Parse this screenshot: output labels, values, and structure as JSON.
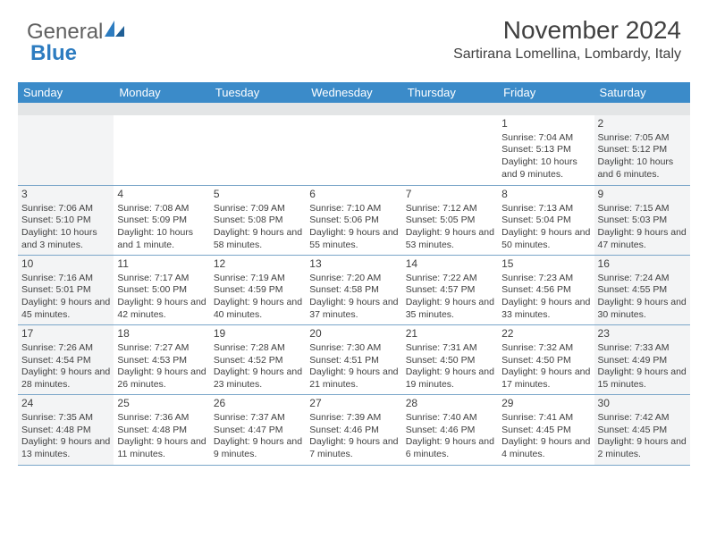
{
  "logo": {
    "text1": "General",
    "text2": "Blue",
    "shape_color": "#2d7cc0"
  },
  "title": "November 2024",
  "location": "Sartirana Lomellina, Lombardy, Italy",
  "header_bg": "#3b8bc9",
  "header_fg": "#ffffff",
  "shade_bg": "#f3f4f5",
  "rule_color": "#7aa6c9",
  "days": [
    "Sunday",
    "Monday",
    "Tuesday",
    "Wednesday",
    "Thursday",
    "Friday",
    "Saturday"
  ],
  "weeks": [
    [
      {
        "n": "",
        "shaded": true
      },
      {
        "n": ""
      },
      {
        "n": ""
      },
      {
        "n": ""
      },
      {
        "n": ""
      },
      {
        "n": "1",
        "sr": "Sunrise: 7:04 AM",
        "ss": "Sunset: 5:13 PM",
        "dl": "Daylight: 10 hours and 9 minutes."
      },
      {
        "n": "2",
        "shaded": true,
        "sr": "Sunrise: 7:05 AM",
        "ss": "Sunset: 5:12 PM",
        "dl": "Daylight: 10 hours and 6 minutes."
      }
    ],
    [
      {
        "n": "3",
        "shaded": true,
        "sr": "Sunrise: 7:06 AM",
        "ss": "Sunset: 5:10 PM",
        "dl": "Daylight: 10 hours and 3 minutes."
      },
      {
        "n": "4",
        "sr": "Sunrise: 7:08 AM",
        "ss": "Sunset: 5:09 PM",
        "dl": "Daylight: 10 hours and 1 minute."
      },
      {
        "n": "5",
        "sr": "Sunrise: 7:09 AM",
        "ss": "Sunset: 5:08 PM",
        "dl": "Daylight: 9 hours and 58 minutes."
      },
      {
        "n": "6",
        "sr": "Sunrise: 7:10 AM",
        "ss": "Sunset: 5:06 PM",
        "dl": "Daylight: 9 hours and 55 minutes."
      },
      {
        "n": "7",
        "sr": "Sunrise: 7:12 AM",
        "ss": "Sunset: 5:05 PM",
        "dl": "Daylight: 9 hours and 53 minutes."
      },
      {
        "n": "8",
        "sr": "Sunrise: 7:13 AM",
        "ss": "Sunset: 5:04 PM",
        "dl": "Daylight: 9 hours and 50 minutes."
      },
      {
        "n": "9",
        "shaded": true,
        "sr": "Sunrise: 7:15 AM",
        "ss": "Sunset: 5:03 PM",
        "dl": "Daylight: 9 hours and 47 minutes."
      }
    ],
    [
      {
        "n": "10",
        "shaded": true,
        "sr": "Sunrise: 7:16 AM",
        "ss": "Sunset: 5:01 PM",
        "dl": "Daylight: 9 hours and 45 minutes."
      },
      {
        "n": "11",
        "sr": "Sunrise: 7:17 AM",
        "ss": "Sunset: 5:00 PM",
        "dl": "Daylight: 9 hours and 42 minutes."
      },
      {
        "n": "12",
        "sr": "Sunrise: 7:19 AM",
        "ss": "Sunset: 4:59 PM",
        "dl": "Daylight: 9 hours and 40 minutes."
      },
      {
        "n": "13",
        "sr": "Sunrise: 7:20 AM",
        "ss": "Sunset: 4:58 PM",
        "dl": "Daylight: 9 hours and 37 minutes."
      },
      {
        "n": "14",
        "sr": "Sunrise: 7:22 AM",
        "ss": "Sunset: 4:57 PM",
        "dl": "Daylight: 9 hours and 35 minutes."
      },
      {
        "n": "15",
        "sr": "Sunrise: 7:23 AM",
        "ss": "Sunset: 4:56 PM",
        "dl": "Daylight: 9 hours and 33 minutes."
      },
      {
        "n": "16",
        "shaded": true,
        "sr": "Sunrise: 7:24 AM",
        "ss": "Sunset: 4:55 PM",
        "dl": "Daylight: 9 hours and 30 minutes."
      }
    ],
    [
      {
        "n": "17",
        "shaded": true,
        "sr": "Sunrise: 7:26 AM",
        "ss": "Sunset: 4:54 PM",
        "dl": "Daylight: 9 hours and 28 minutes."
      },
      {
        "n": "18",
        "sr": "Sunrise: 7:27 AM",
        "ss": "Sunset: 4:53 PM",
        "dl": "Daylight: 9 hours and 26 minutes."
      },
      {
        "n": "19",
        "sr": "Sunrise: 7:28 AM",
        "ss": "Sunset: 4:52 PM",
        "dl": "Daylight: 9 hours and 23 minutes."
      },
      {
        "n": "20",
        "sr": "Sunrise: 7:30 AM",
        "ss": "Sunset: 4:51 PM",
        "dl": "Daylight: 9 hours and 21 minutes."
      },
      {
        "n": "21",
        "sr": "Sunrise: 7:31 AM",
        "ss": "Sunset: 4:50 PM",
        "dl": "Daylight: 9 hours and 19 minutes."
      },
      {
        "n": "22",
        "sr": "Sunrise: 7:32 AM",
        "ss": "Sunset: 4:50 PM",
        "dl": "Daylight: 9 hours and 17 minutes."
      },
      {
        "n": "23",
        "shaded": true,
        "sr": "Sunrise: 7:33 AM",
        "ss": "Sunset: 4:49 PM",
        "dl": "Daylight: 9 hours and 15 minutes."
      }
    ],
    [
      {
        "n": "24",
        "shaded": true,
        "sr": "Sunrise: 7:35 AM",
        "ss": "Sunset: 4:48 PM",
        "dl": "Daylight: 9 hours and 13 minutes."
      },
      {
        "n": "25",
        "sr": "Sunrise: 7:36 AM",
        "ss": "Sunset: 4:48 PM",
        "dl": "Daylight: 9 hours and 11 minutes."
      },
      {
        "n": "26",
        "sr": "Sunrise: 7:37 AM",
        "ss": "Sunset: 4:47 PM",
        "dl": "Daylight: 9 hours and 9 minutes."
      },
      {
        "n": "27",
        "sr": "Sunrise: 7:39 AM",
        "ss": "Sunset: 4:46 PM",
        "dl": "Daylight: 9 hours and 7 minutes."
      },
      {
        "n": "28",
        "sr": "Sunrise: 7:40 AM",
        "ss": "Sunset: 4:46 PM",
        "dl": "Daylight: 9 hours and 6 minutes."
      },
      {
        "n": "29",
        "sr": "Sunrise: 7:41 AM",
        "ss": "Sunset: 4:45 PM",
        "dl": "Daylight: 9 hours and 4 minutes."
      },
      {
        "n": "30",
        "shaded": true,
        "sr": "Sunrise: 7:42 AM",
        "ss": "Sunset: 4:45 PM",
        "dl": "Daylight: 9 hours and 2 minutes."
      }
    ]
  ]
}
